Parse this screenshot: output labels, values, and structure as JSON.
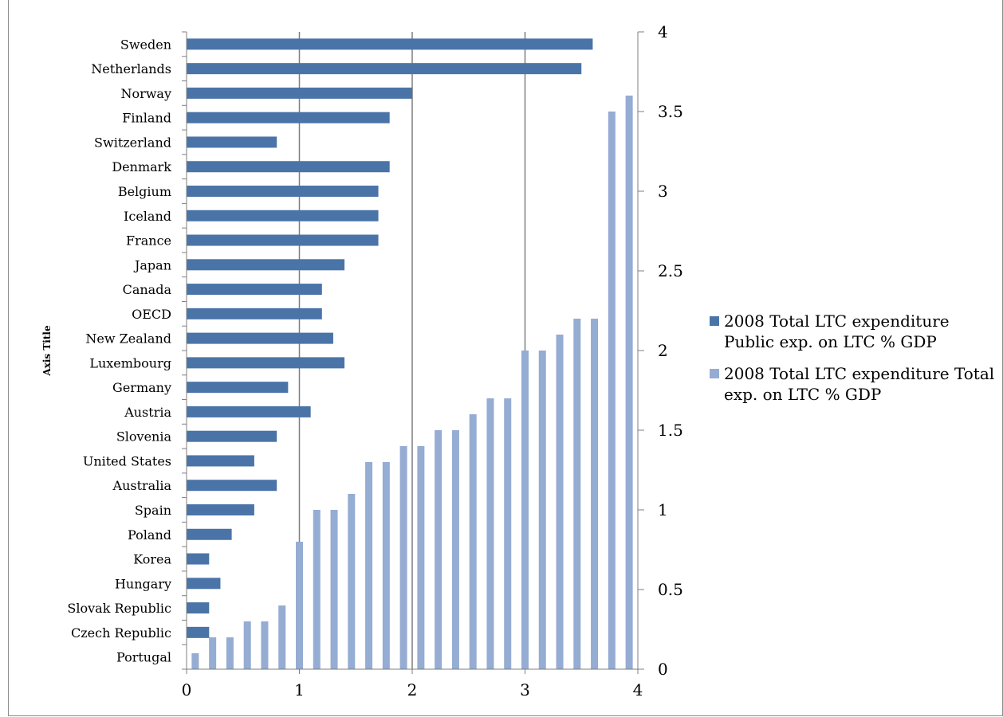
{
  "chart_data": {
    "type": "bar",
    "ylabel": "Axis Title",
    "colors": {
      "public": "#4a74a8",
      "total": "#95acd3",
      "grid": "#7f7f7f"
    },
    "primary": {
      "orientation": "horizontal",
      "categories": [
        "Portugal",
        "Czech Republic",
        "Slovak Republic",
        "Hungary",
        "Korea",
        "Poland",
        "Spain",
        "Australia",
        "United States",
        "Slovenia",
        "Austria",
        "Germany",
        "Luxembourg",
        "New Zealand",
        "OECD",
        "Canada",
        "Japan",
        "France",
        "Iceland",
        "Belgium",
        "Denmark",
        "Switzerland",
        "Finland",
        "Norway",
        "Netherlands",
        "Sweden"
      ],
      "series_name": "2008 Total LTC expenditure Public exp. on LTC % GDP",
      "values": [
        0.0,
        0.2,
        0.2,
        0.3,
        0.2,
        0.4,
        0.6,
        0.8,
        0.6,
        0.8,
        1.1,
        0.9,
        1.4,
        1.3,
        1.2,
        1.2,
        1.4,
        1.7,
        1.7,
        1.7,
        1.8,
        0.8,
        1.8,
        2.0,
        3.5,
        3.6
      ],
      "xlim": [
        0,
        4
      ],
      "x_ticks": [
        "0",
        "1",
        "2",
        "3",
        "4"
      ]
    },
    "secondary": {
      "orientation": "vertical",
      "series_name": "2008 Total LTC expenditure Total exp. on LTC % GDP",
      "values": [
        0.1,
        0.2,
        0.2,
        0.3,
        0.3,
        0.4,
        0.8,
        1.0,
        1.0,
        1.1,
        1.3,
        1.3,
        1.4,
        1.4,
        1.5,
        1.5,
        1.6,
        1.7,
        1.7,
        2.0,
        2.0,
        2.1,
        2.2,
        2.2,
        3.5,
        3.6
      ],
      "ylim": [
        0,
        4
      ],
      "y_ticks": [
        "0",
        "0.5",
        "1",
        "1.5",
        "2",
        "2.5",
        "3",
        "3.5",
        "4"
      ]
    },
    "grid": "vertical",
    "legend_position": "right"
  }
}
